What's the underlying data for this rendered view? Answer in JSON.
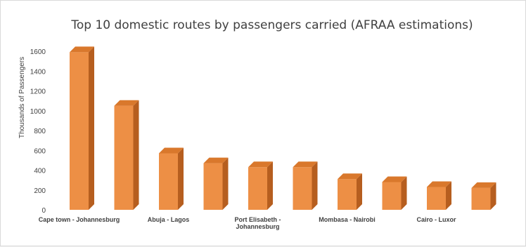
{
  "chart_data": {
    "type": "bar",
    "title": "Top 10 domestic routes by passengers carried (AFRAA estimations)",
    "ylabel": "Thousands of Passengers",
    "xlabel": "",
    "ylim": [
      0,
      1600
    ],
    "yticks": [
      0,
      200,
      400,
      600,
      800,
      1000,
      1200,
      1400,
      1600
    ],
    "grid": false,
    "legend": "none",
    "categories": [
      "Cape town - Johannesburg",
      "",
      "Abuja - Lagos",
      "",
      "Port Elisabeth - Johannesburg",
      "",
      "Mombasa - Nairobi",
      "",
      "Cairo - Luxor",
      ""
    ],
    "values": [
      1590,
      1050,
      570,
      470,
      430,
      430,
      310,
      280,
      230,
      220
    ]
  },
  "colors": {
    "bar_front": "#ed8f45",
    "bar_side": "#b65e1f",
    "bar_top": "#d9782c",
    "text": "#404040",
    "title": "#404040"
  }
}
